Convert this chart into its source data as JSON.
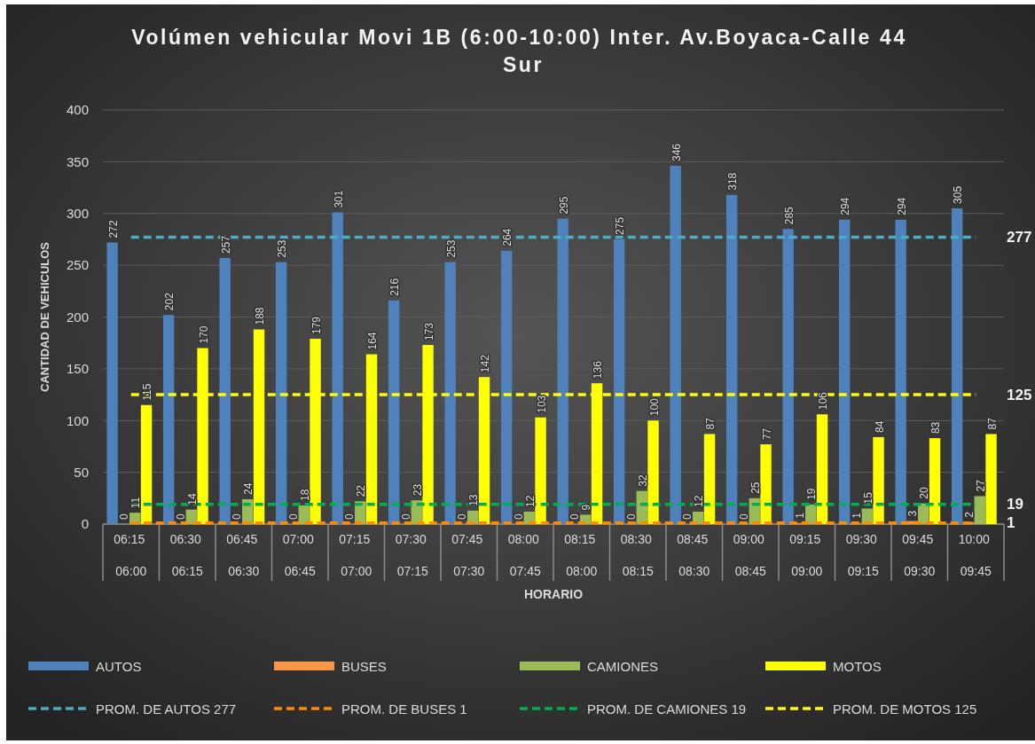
{
  "chart_data": {
    "type": "bar",
    "title": "Volúmen vehicular Movi 1B (6:00-10:00) Inter. Av.Boyaca-Calle 44 Sur",
    "xlabel": "HORARIO",
    "ylabel": "CANTIDAD DE VEHICULOS",
    "categories": [
      "06:15\n06:00",
      "06:30\n06:15",
      "06:45\n06:30",
      "07:00\n06:45",
      "07:15\n07:00",
      "07:30\n07:15",
      "07:45\n07:30",
      "08:00\n07:45",
      "08:15\n08:00",
      "08:30\n08:15",
      "08:45\n08:30",
      "09:00\n08:45",
      "09:15\n09:00",
      "09:30\n09:15",
      "09:45\n09:30",
      "10:00\n09:45"
    ],
    "series": [
      {
        "name": "AUTOS",
        "color": "#4f81bd",
        "values": [
          272,
          202,
          257,
          253,
          301,
          216,
          253,
          264,
          295,
          275,
          346,
          318,
          285,
          294,
          294,
          305
        ]
      },
      {
        "name": "BUSES",
        "color": "#f79646",
        "values": [
          0,
          0,
          0,
          0,
          0,
          0,
          0,
          0,
          0,
          0,
          0,
          0,
          1,
          1,
          3,
          2
        ]
      },
      {
        "name": "CAMIONES",
        "color": "#9bbb59",
        "values": [
          11,
          14,
          24,
          18,
          22,
          23,
          13,
          12,
          9,
          32,
          12,
          25,
          19,
          15,
          20,
          27
        ]
      },
      {
        "name": "MOTOS",
        "color": "#ffff00",
        "values": [
          115,
          170,
          188,
          179,
          164,
          173,
          142,
          103,
          136,
          100,
          87,
          77,
          106,
          84,
          83,
          87
        ]
      }
    ],
    "ylim": [
      0,
      400
    ],
    "yticks": [
      0,
      50,
      100,
      150,
      200,
      250,
      300,
      350,
      400
    ],
    "grid": "y",
    "legend": "bottom",
    "data_labels": true,
    "ref_lines": [
      {
        "axis": "y",
        "value": 277,
        "label": "PROM. DE AUTOS 277",
        "color": "#4bacc6",
        "line_style": "dashed"
      },
      {
        "axis": "y",
        "value": 1,
        "label": "PROM. DE BUSES 1",
        "color": "#ff8c00",
        "line_style": "dashed"
      },
      {
        "axis": "y",
        "value": 19,
        "label": "PROM. DE CAMIONES 19",
        "color": "#00b050",
        "line_style": "dashed"
      },
      {
        "axis": "y",
        "value": 125,
        "label": "PROM. DE MOTOS 125",
        "color": "#ffff00",
        "line_style": "dashed"
      }
    ],
    "annotations": [
      {
        "text": "277",
        "x": "10:00\n09:45",
        "y": 277
      },
      {
        "text": "125",
        "x": "10:00\n09:45",
        "y": 125
      },
      {
        "text": "19",
        "x": "10:00\n09:45",
        "y": 19
      },
      {
        "text": "1",
        "x": "10:00\n09:45",
        "y": 1
      }
    ]
  }
}
